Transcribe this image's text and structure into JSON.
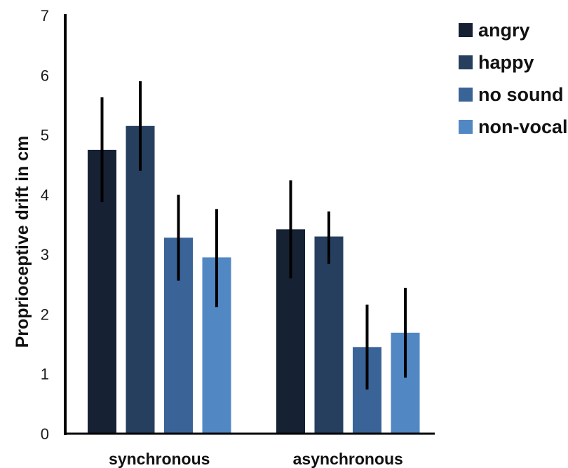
{
  "chart_data": {
    "type": "bar",
    "ylabel": "Proprioceptive drift in cm",
    "ylim": [
      0,
      7
    ],
    "yticks": [
      "0",
      "1",
      "2",
      "3",
      "4",
      "5",
      "6",
      "7"
    ],
    "categories": [
      "synchronous",
      "asynchronous"
    ],
    "legend_position": "top-right",
    "grid": false,
    "series": [
      {
        "name": "angry",
        "color": "#162133",
        "values": [
          4.75,
          3.42
        ],
        "err_low": [
          3.88,
          2.6
        ],
        "err_high": [
          5.63,
          4.24
        ]
      },
      {
        "name": "happy",
        "color": "#263f5f",
        "values": [
          5.15,
          3.3
        ],
        "err_low": [
          4.4,
          2.84
        ],
        "err_high": [
          5.9,
          3.72
        ]
      },
      {
        "name": "no sound",
        "color": "#3a6398",
        "values": [
          3.28,
          1.45
        ],
        "err_low": [
          2.56,
          0.74
        ],
        "err_high": [
          4.0,
          2.16
        ]
      },
      {
        "name": "non-vocal",
        "color": "#5187c3",
        "values": [
          2.95,
          1.69
        ],
        "err_low": [
          2.12,
          0.94
        ],
        "err_high": [
          3.76,
          2.44
        ]
      }
    ]
  }
}
